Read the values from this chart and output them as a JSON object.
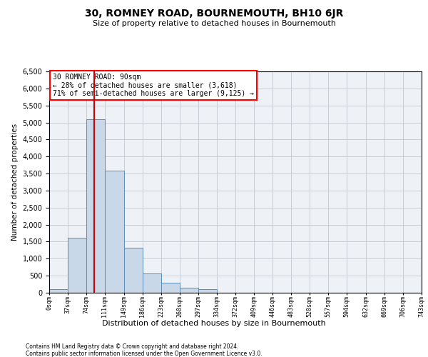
{
  "title": "30, ROMNEY ROAD, BOURNEMOUTH, BH10 6JR",
  "subtitle": "Size of property relative to detached houses in Bournemouth",
  "xlabel": "Distribution of detached houses by size in Bournemouth",
  "ylabel": "Number of detached properties",
  "footnote1": "Contains HM Land Registry data © Crown copyright and database right 2024.",
  "footnote2": "Contains public sector information licensed under the Open Government Licence v3.0.",
  "annotation_line1": "30 ROMNEY ROAD: 90sqm",
  "annotation_line2": "← 28% of detached houses are smaller (3,618)",
  "annotation_line3": "71% of semi-detached houses are larger (9,125) →",
  "property_size": 90,
  "bar_color": "#c8d8e8",
  "bar_edge_color": "#5b8db8",
  "vline_color": "#cc0000",
  "grid_color": "#c0c8d0",
  "bg_color": "#eef2f7",
  "bins": [
    0,
    37,
    74,
    111,
    149,
    186,
    223,
    260,
    297,
    334,
    372,
    409,
    446,
    483,
    520,
    557,
    594,
    632,
    669,
    706,
    743
  ],
  "counts": [
    100,
    1620,
    5100,
    3580,
    1320,
    560,
    290,
    145,
    105,
    0,
    0,
    0,
    0,
    0,
    0,
    0,
    0,
    0,
    0,
    0
  ],
  "ylim": [
    0,
    6500
  ],
  "yticks": [
    0,
    500,
    1000,
    1500,
    2000,
    2500,
    3000,
    3500,
    4000,
    4500,
    5000,
    5500,
    6000,
    6500
  ]
}
